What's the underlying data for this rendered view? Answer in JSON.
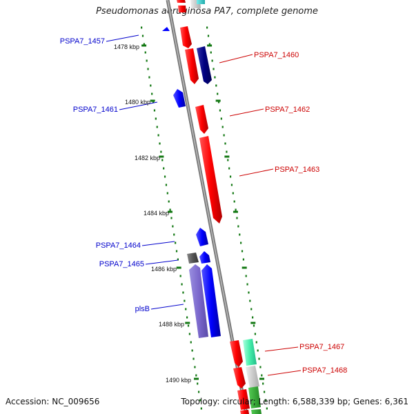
{
  "title": "Pseudomonas aeruginosa PA7, complete genome",
  "footer": {
    "accession": "Accession: NC_009656",
    "summary": "Topology: circular; Length: 6,588,339 bp; Genes: 6,361"
  },
  "ticks": [
    "1478 kbp",
    "1480 kbp",
    "1482 kbp",
    "1484 kbp",
    "1486 kbp",
    "1488 kbp",
    "1490 kbp"
  ],
  "genes": [
    {
      "name": "PSPA7_1457",
      "strand": "reverse",
      "color": "#0000cc"
    },
    {
      "name": "PSPA7_1460",
      "strand": "forward",
      "color": "#cc0000"
    },
    {
      "name": "PSPA7_1461",
      "strand": "reverse",
      "color": "#0000cc"
    },
    {
      "name": "PSPA7_1462",
      "strand": "forward",
      "color": "#cc0000"
    },
    {
      "name": "PSPA7_1463",
      "strand": "forward",
      "color": "#cc0000"
    },
    {
      "name": "PSPA7_1464",
      "strand": "reverse",
      "color": "#0000cc"
    },
    {
      "name": "PSPA7_1465",
      "strand": "reverse",
      "color": "#0000cc"
    },
    {
      "name": "plsB",
      "strand": "reverse",
      "color": "#0000cc"
    },
    {
      "name": "PSPA7_1467",
      "strand": "forward",
      "color": "#cc0000"
    },
    {
      "name": "PSPA7_1468",
      "strand": "forward",
      "color": "#cc0000"
    }
  ]
}
